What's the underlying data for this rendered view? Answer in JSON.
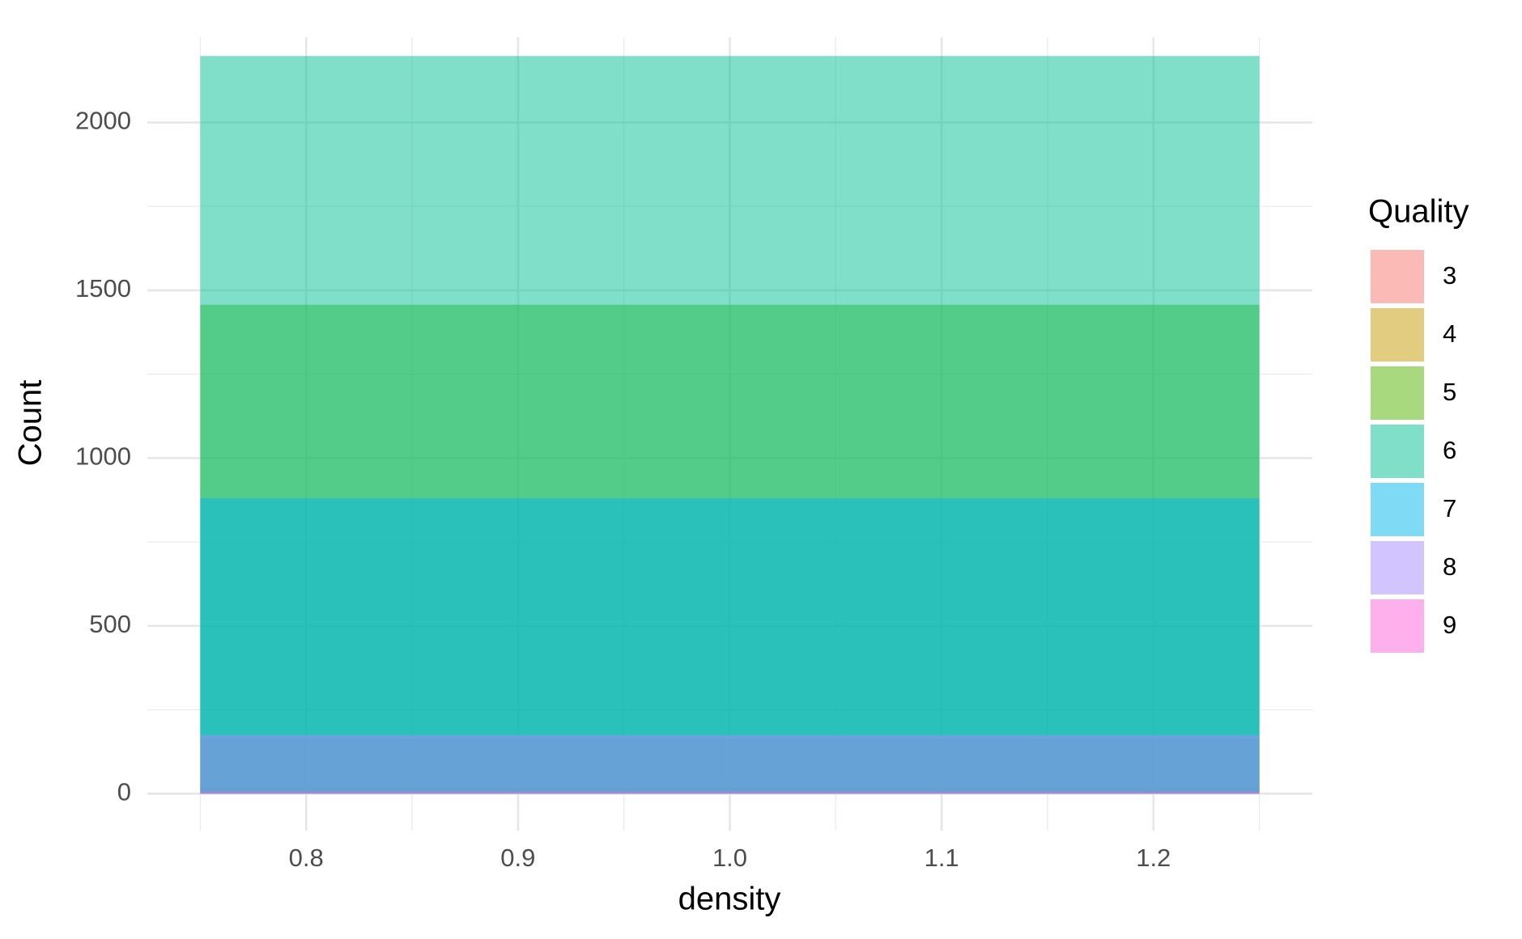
{
  "chart_data": {
    "type": "histogram",
    "x_label": "density",
    "y_label": "Count",
    "bins": [
      0.75,
      1.25
    ],
    "legend_title": "Quality",
    "series": [
      {
        "name": "3",
        "color": "#F8766D",
        "values": [
          20
        ]
      },
      {
        "name": "4",
        "color": "#C49A00",
        "values": [
          163
        ]
      },
      {
        "name": "5",
        "color": "#53B400",
        "values": [
          1457
        ]
      },
      {
        "name": "6",
        "color": "#00C094",
        "values": [
          2198
        ]
      },
      {
        "name": "7",
        "color": "#00B6EB",
        "values": [
          880
        ]
      },
      {
        "name": "8",
        "color": "#A58AFF",
        "values": [
          175
        ]
      },
      {
        "name": "9",
        "color": "#FB61D7",
        "values": [
          5
        ]
      }
    ],
    "alpha": 0.5,
    "xlim": [
      0.725,
      1.275
    ],
    "ylim": [
      -110,
      2254
    ],
    "xticks": [
      0.8,
      0.9,
      {
        "value": 1.0,
        "label": "1.0"
      },
      1.1,
      1.2
    ],
    "yticks": [
      0,
      500,
      1000,
      1500,
      2000
    ],
    "xminor": [
      0.75,
      0.85,
      0.95,
      1.05,
      1.15,
      1.25
    ],
    "yminor": [
      250,
      750,
      1250,
      1750
    ],
    "grid": true,
    "legend": "right"
  }
}
